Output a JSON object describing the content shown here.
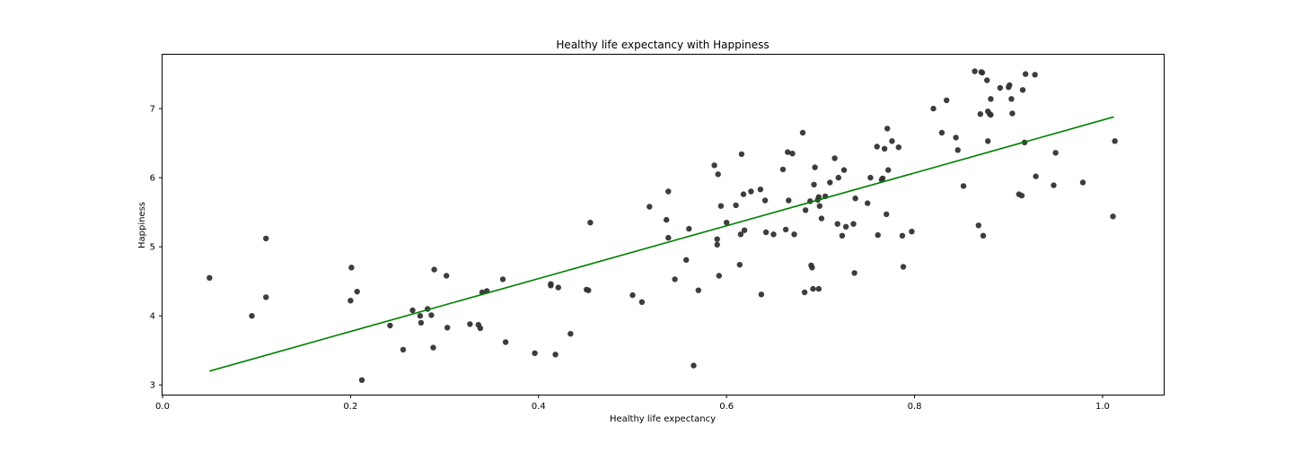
{
  "chart_data": {
    "type": "scatter",
    "title": "Healthy life expectancy with Happiness",
    "xlabel": "Healthy life expectancy",
    "ylabel": "Happiness",
    "xlim": [
      0.0,
      1.065
    ],
    "ylim": [
      2.86,
      7.78
    ],
    "xticks": [
      0.0,
      0.2,
      0.4,
      0.6,
      0.8,
      1.0
    ],
    "xtick_labels": [
      "0.0",
      "0.2",
      "0.4",
      "0.6",
      "0.8",
      "1.0"
    ],
    "yticks": [
      3,
      4,
      5,
      6,
      7
    ],
    "ytick_labels": [
      "3",
      "4",
      "5",
      "6",
      "7"
    ],
    "grid": false,
    "colors": {
      "points": "#333333",
      "fit_line": "#008000"
    },
    "fit_line": {
      "x": [
        0.05,
        1.012
      ],
      "y": [
        3.2,
        6.88
      ]
    },
    "points": [
      {
        "x": 0.05,
        "y": 4.55
      },
      {
        "x": 0.095,
        "y": 4.0
      },
      {
        "x": 0.11,
        "y": 5.12
      },
      {
        "x": 0.11,
        "y": 4.27
      },
      {
        "x": 0.2,
        "y": 4.22
      },
      {
        "x": 0.201,
        "y": 4.7
      },
      {
        "x": 0.207,
        "y": 4.35
      },
      {
        "x": 0.212,
        "y": 3.07
      },
      {
        "x": 0.242,
        "y": 3.86
      },
      {
        "x": 0.256,
        "y": 3.51
      },
      {
        "x": 0.266,
        "y": 4.08
      },
      {
        "x": 0.274,
        "y": 4.0
      },
      {
        "x": 0.275,
        "y": 3.9
      },
      {
        "x": 0.282,
        "y": 4.1
      },
      {
        "x": 0.286,
        "y": 4.01
      },
      {
        "x": 0.288,
        "y": 3.54
      },
      {
        "x": 0.289,
        "y": 4.67
      },
      {
        "x": 0.302,
        "y": 4.58
      },
      {
        "x": 0.303,
        "y": 3.83
      },
      {
        "x": 0.327,
        "y": 3.88
      },
      {
        "x": 0.336,
        "y": 3.87
      },
      {
        "x": 0.338,
        "y": 3.82
      },
      {
        "x": 0.34,
        "y": 4.34
      },
      {
        "x": 0.345,
        "y": 4.36
      },
      {
        "x": 0.362,
        "y": 4.53
      },
      {
        "x": 0.365,
        "y": 3.62
      },
      {
        "x": 0.396,
        "y": 3.46
      },
      {
        "x": 0.413,
        "y": 4.46
      },
      {
        "x": 0.413,
        "y": 4.44
      },
      {
        "x": 0.418,
        "y": 3.44
      },
      {
        "x": 0.421,
        "y": 4.41
      },
      {
        "x": 0.434,
        "y": 3.74
      },
      {
        "x": 0.451,
        "y": 4.38
      },
      {
        "x": 0.453,
        "y": 4.37
      },
      {
        "x": 0.455,
        "y": 5.35
      },
      {
        "x": 0.5,
        "y": 4.3
      },
      {
        "x": 0.51,
        "y": 4.2
      },
      {
        "x": 0.518,
        "y": 5.58
      },
      {
        "x": 0.536,
        "y": 5.39
      },
      {
        "x": 0.538,
        "y": 5.8
      },
      {
        "x": 0.538,
        "y": 5.13
      },
      {
        "x": 0.545,
        "y": 4.53
      },
      {
        "x": 0.557,
        "y": 4.81
      },
      {
        "x": 0.56,
        "y": 5.26
      },
      {
        "x": 0.565,
        "y": 3.28
      },
      {
        "x": 0.57,
        "y": 4.37
      },
      {
        "x": 0.587,
        "y": 6.18
      },
      {
        "x": 0.59,
        "y": 5.11
      },
      {
        "x": 0.59,
        "y": 5.03
      },
      {
        "x": 0.591,
        "y": 6.05
      },
      {
        "x": 0.592,
        "y": 4.58
      },
      {
        "x": 0.594,
        "y": 5.59
      },
      {
        "x": 0.6,
        "y": 5.35
      },
      {
        "x": 0.61,
        "y": 5.6
      },
      {
        "x": 0.614,
        "y": 4.74
      },
      {
        "x": 0.615,
        "y": 5.18
      },
      {
        "x": 0.616,
        "y": 6.34
      },
      {
        "x": 0.618,
        "y": 5.76
      },
      {
        "x": 0.619,
        "y": 5.24
      },
      {
        "x": 0.626,
        "y": 5.8
      },
      {
        "x": 0.636,
        "y": 5.83
      },
      {
        "x": 0.637,
        "y": 4.31
      },
      {
        "x": 0.641,
        "y": 5.67
      },
      {
        "x": 0.642,
        "y": 5.21
      },
      {
        "x": 0.65,
        "y": 5.18
      },
      {
        "x": 0.66,
        "y": 6.12
      },
      {
        "x": 0.663,
        "y": 5.25
      },
      {
        "x": 0.665,
        "y": 6.37
      },
      {
        "x": 0.666,
        "y": 5.67
      },
      {
        "x": 0.67,
        "y": 6.35
      },
      {
        "x": 0.672,
        "y": 5.18
      },
      {
        "x": 0.681,
        "y": 6.65
      },
      {
        "x": 0.683,
        "y": 4.34
      },
      {
        "x": 0.684,
        "y": 5.53
      },
      {
        "x": 0.689,
        "y": 5.66
      },
      {
        "x": 0.69,
        "y": 4.73
      },
      {
        "x": 0.691,
        "y": 4.7
      },
      {
        "x": 0.692,
        "y": 4.39
      },
      {
        "x": 0.693,
        "y": 5.9
      },
      {
        "x": 0.694,
        "y": 6.15
      },
      {
        "x": 0.697,
        "y": 5.68
      },
      {
        "x": 0.698,
        "y": 4.39
      },
      {
        "x": 0.698,
        "y": 5.72
      },
      {
        "x": 0.699,
        "y": 5.59
      },
      {
        "x": 0.701,
        "y": 5.41
      },
      {
        "x": 0.705,
        "y": 5.73
      },
      {
        "x": 0.71,
        "y": 5.93
      },
      {
        "x": 0.715,
        "y": 6.28
      },
      {
        "x": 0.718,
        "y": 5.33
      },
      {
        "x": 0.719,
        "y": 6.0
      },
      {
        "x": 0.723,
        "y": 5.16
      },
      {
        "x": 0.725,
        "y": 6.11
      },
      {
        "x": 0.727,
        "y": 5.29
      },
      {
        "x": 0.735,
        "y": 5.33
      },
      {
        "x": 0.736,
        "y": 4.62
      },
      {
        "x": 0.737,
        "y": 5.7
      },
      {
        "x": 0.75,
        "y": 5.63
      },
      {
        "x": 0.753,
        "y": 6.0
      },
      {
        "x": 0.76,
        "y": 6.45
      },
      {
        "x": 0.761,
        "y": 5.17
      },
      {
        "x": 0.765,
        "y": 5.97
      },
      {
        "x": 0.766,
        "y": 5.99
      },
      {
        "x": 0.768,
        "y": 6.42
      },
      {
        "x": 0.77,
        "y": 5.47
      },
      {
        "x": 0.771,
        "y": 6.71
      },
      {
        "x": 0.772,
        "y": 6.11
      },
      {
        "x": 0.776,
        "y": 6.53
      },
      {
        "x": 0.783,
        "y": 6.44
      },
      {
        "x": 0.787,
        "y": 5.16
      },
      {
        "x": 0.788,
        "y": 4.71
      },
      {
        "x": 0.797,
        "y": 5.22
      },
      {
        "x": 0.82,
        "y": 7.0
      },
      {
        "x": 0.829,
        "y": 6.65
      },
      {
        "x": 0.834,
        "y": 7.12
      },
      {
        "x": 0.844,
        "y": 6.58
      },
      {
        "x": 0.846,
        "y": 6.4
      },
      {
        "x": 0.852,
        "y": 5.88
      },
      {
        "x": 0.864,
        "y": 7.54
      },
      {
        "x": 0.868,
        "y": 5.31
      },
      {
        "x": 0.87,
        "y": 6.92
      },
      {
        "x": 0.871,
        "y": 7.53
      },
      {
        "x": 0.872,
        "y": 7.52
      },
      {
        "x": 0.873,
        "y": 5.16
      },
      {
        "x": 0.877,
        "y": 7.41
      },
      {
        "x": 0.878,
        "y": 6.53
      },
      {
        "x": 0.878,
        "y": 6.96
      },
      {
        "x": 0.88,
        "y": 6.92
      },
      {
        "x": 0.881,
        "y": 7.14
      },
      {
        "x": 0.881,
        "y": 6.91
      },
      {
        "x": 0.891,
        "y": 7.3
      },
      {
        "x": 0.9,
        "y": 7.31
      },
      {
        "x": 0.901,
        "y": 7.34
      },
      {
        "x": 0.903,
        "y": 7.14
      },
      {
        "x": 0.904,
        "y": 6.93
      },
      {
        "x": 0.911,
        "y": 5.76
      },
      {
        "x": 0.914,
        "y": 5.74
      },
      {
        "x": 0.915,
        "y": 7.27
      },
      {
        "x": 0.917,
        "y": 6.51
      },
      {
        "x": 0.918,
        "y": 7.5
      },
      {
        "x": 0.928,
        "y": 7.49
      },
      {
        "x": 0.929,
        "y": 6.02
      },
      {
        "x": 0.948,
        "y": 5.89
      },
      {
        "x": 0.95,
        "y": 6.36
      },
      {
        "x": 0.979,
        "y": 5.93
      },
      {
        "x": 1.011,
        "y": 5.44
      },
      {
        "x": 1.013,
        "y": 6.53
      }
    ]
  }
}
